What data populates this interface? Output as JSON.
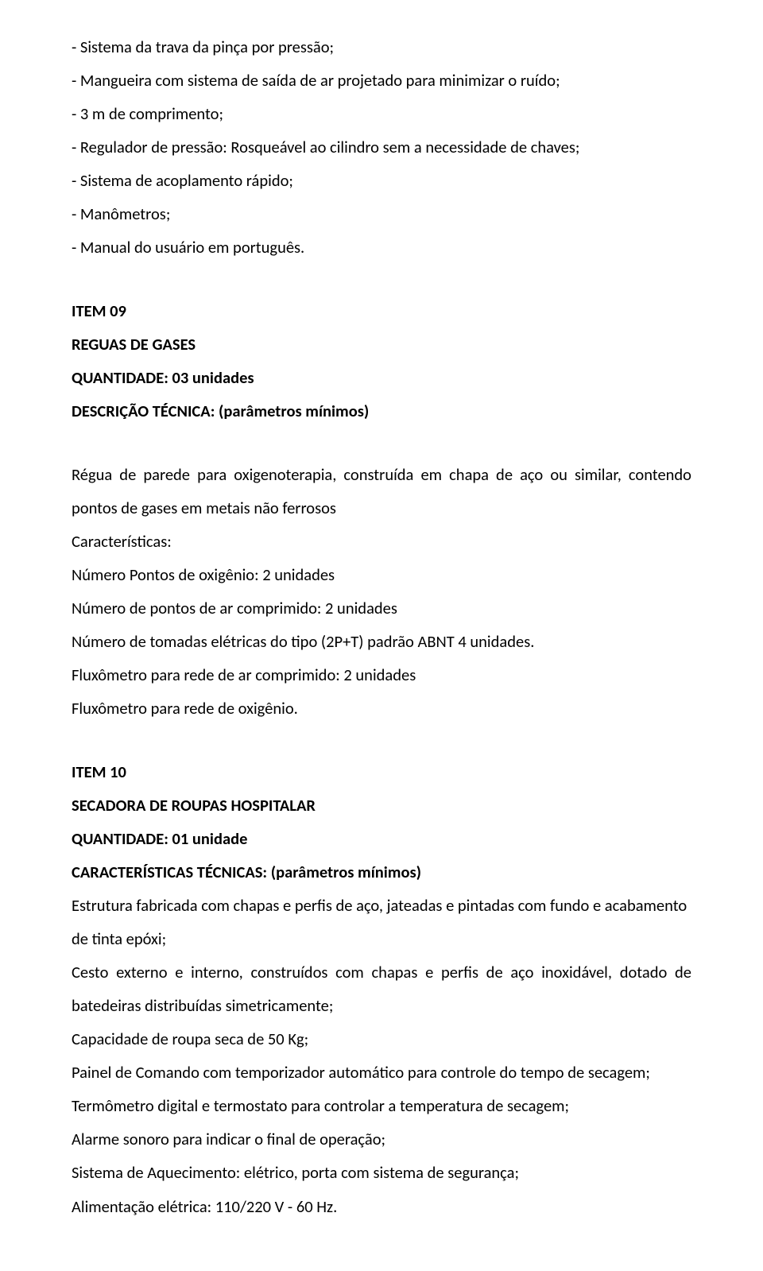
{
  "doc": {
    "font_color": "#000000",
    "background_color": "#ffffff",
    "font_family": "Calibri",
    "body_font_size_pt": 15,
    "bold_weight": 700,
    "line_height": 2.05,
    "top_list": {
      "l0": "- Sistema da trava da pinça por pressão;",
      "l1": "- Mangueira com sistema de saída de ar projetado para minimizar o ruído;",
      "l2": "- 3 m de comprimento;",
      "l3": "- Regulador de pressão: Rosqueável ao cilindro sem a necessidade de chaves;",
      "l4": "- Sistema de acoplamento rápido;",
      "l5": "- Manômetros;",
      "l6": "- Manual do usuário em português."
    },
    "item09": {
      "title": "ITEM 09",
      "name": "REGUAS DE GASES",
      "qty": "QUANTIDADE: 03 unidades",
      "desc_head": "DESCRIÇÃO TÉCNICA: (parâmetros mínimos)",
      "body": {
        "p0": "Régua de parede para oxigenoterapia, construída em chapa de aço ou similar, contendo pontos de gases em metais não ferrosos",
        "p1": "Características:",
        "p2": "Número Pontos de oxigênio: 2 unidades",
        "p3": "Número de pontos de ar comprimido: 2 unidades",
        "p4": "Número de tomadas elétricas do tipo (2P+T) padrão ABNT 4 unidades.",
        "p5": "Fluxômetro para rede de ar comprimido: 2 unidades",
        "p6": "Fluxômetro para rede de oxigênio."
      }
    },
    "item10": {
      "title": "ITEM 10",
      "name": "SECADORA DE ROUPAS HOSPITALAR",
      "qty": "QUANTIDADE: 01 unidade",
      "desc_head": "CARACTERÍSTICAS TÉCNICAS: (parâmetros mínimos)",
      "body": {
        "p0": " Estrutura fabricada com chapas e perfis de aço, jateadas e pintadas com fundo e acabamento de tinta epóxi;",
        "p1": "Cesto externo e interno, construídos com chapas e perfis de aço inoxidável, dotado de batedeiras distribuídas simetricamente;",
        "p2": "Capacidade de roupa seca de 50 Kg;",
        "p3": "Painel de Comando com temporizador automático para controle do tempo de secagem;",
        "p4": "Termômetro digital e termostato para controlar a temperatura de secagem;",
        "p5": "Alarme sonoro para indicar o final de operação;",
        "p6": "Sistema de Aquecimento: elétrico, porta com sistema de segurança;",
        "p7": "Alimentação elétrica: 110/220 V - 60 Hz."
      }
    }
  }
}
